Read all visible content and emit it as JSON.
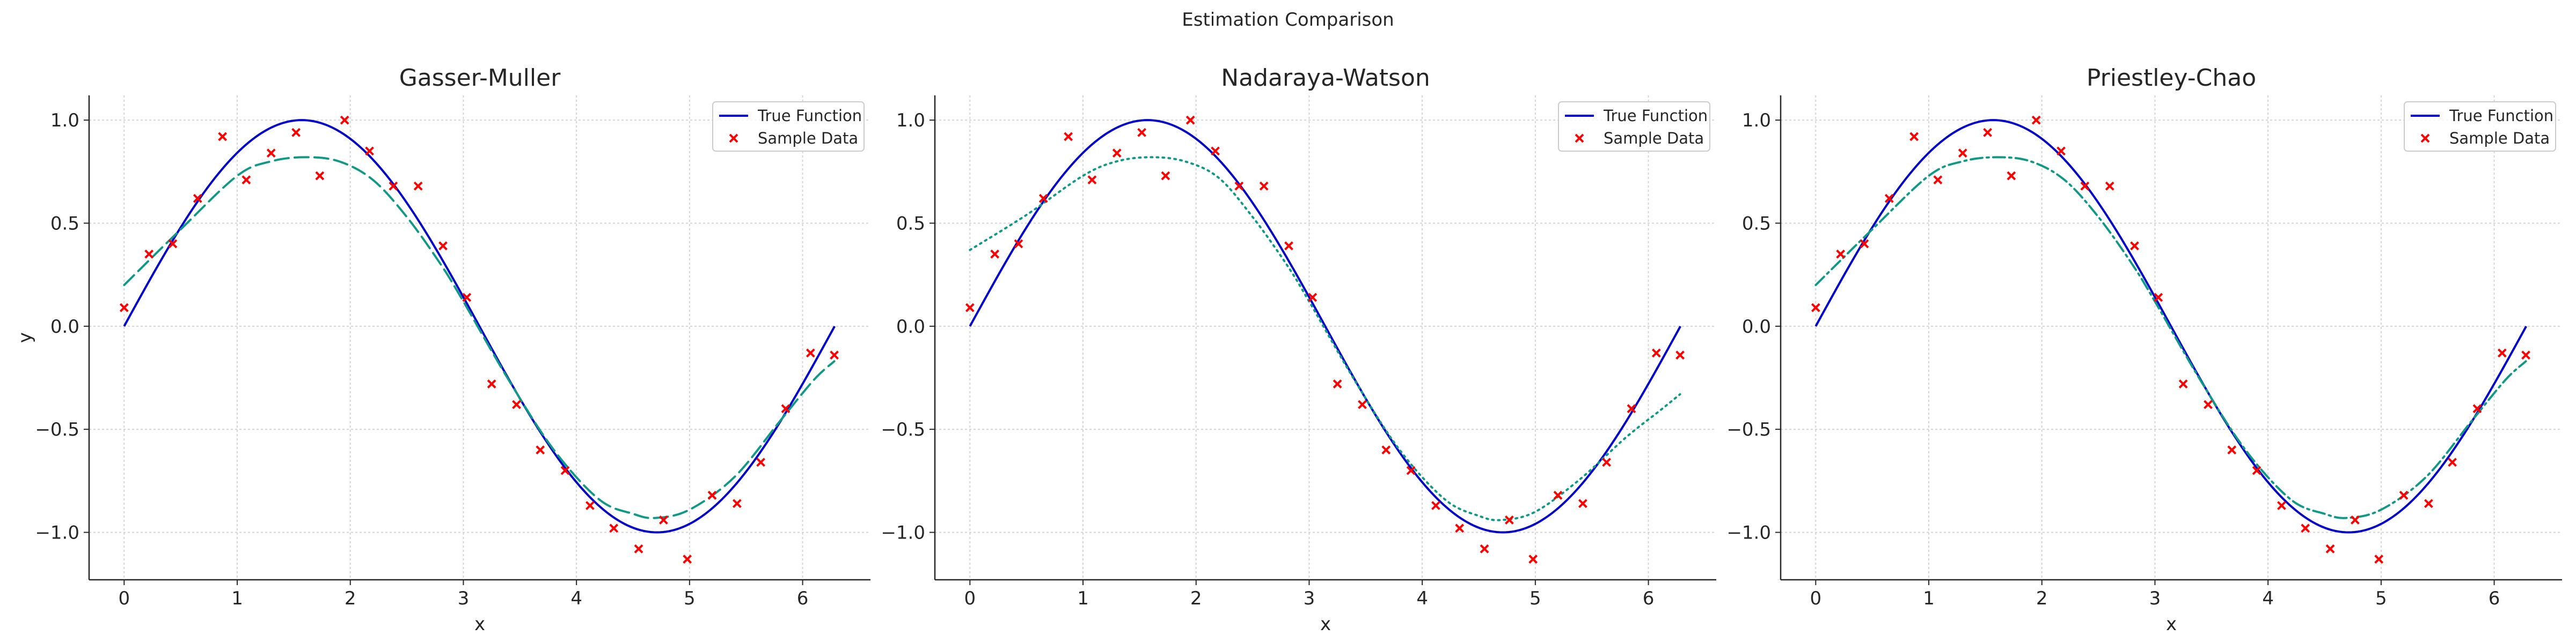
{
  "figure_title": "Estimation Comparison",
  "colors": {
    "true_function": "#0000cc",
    "estimate": "#119988",
    "sample": "#ff0000",
    "grid": "#d4d4d4",
    "axis": "#262626"
  },
  "chart_data": [
    {
      "type": "line",
      "title": "Gasser-Muller",
      "xlabel": "x",
      "ylabel": "y",
      "xlim": [
        -0.31,
        6.6
      ],
      "ylim": [
        -1.23,
        1.12
      ],
      "xticks": [
        0,
        1,
        2,
        3,
        4,
        5,
        6
      ],
      "yticks": [
        -1.0,
        -0.5,
        0.0,
        0.5,
        1.0
      ],
      "xtick_labels": [
        "0",
        "1",
        "2",
        "3",
        "4",
        "5",
        "6"
      ],
      "ytick_labels": [
        "−1.0",
        "−0.5",
        "0.0",
        "0.5",
        "1.0"
      ],
      "grid": true,
      "legend_position": "top-right",
      "legend": [
        "True Function",
        "Sample Data"
      ],
      "estimate_style": "dashed",
      "series": [
        {
          "name": "True Function",
          "function": "sin(x)",
          "x_range": [
            0,
            6.283
          ]
        },
        {
          "name": "Sample Data",
          "kind": "scatter",
          "x": [
            0.0,
            0.22,
            0.43,
            0.65,
            0.87,
            1.08,
            1.3,
            1.52,
            1.73,
            1.95,
            2.17,
            2.38,
            2.6,
            2.82,
            3.03,
            3.25,
            3.47,
            3.68,
            3.9,
            4.12,
            4.33,
            4.55,
            4.77,
            4.98,
            5.2,
            5.42,
            5.63,
            5.85,
            6.07,
            6.28
          ],
          "y": [
            0.09,
            0.35,
            0.4,
            0.62,
            0.92,
            0.71,
            0.84,
            0.94,
            0.73,
            1.0,
            0.85,
            0.68,
            0.68,
            0.39,
            0.14,
            -0.28,
            -0.38,
            -0.6,
            -0.7,
            -0.87,
            -0.98,
            -1.08,
            -0.94,
            -1.13,
            -0.82,
            -0.86,
            -0.66,
            -0.4,
            -0.13,
            -0.14
          ]
        },
        {
          "kind": "estimate",
          "x": [
            0.0,
            0.5,
            1.0,
            1.3,
            1.6,
            1.9,
            2.2,
            2.5,
            2.8,
            3.0,
            3.4,
            3.8,
            4.2,
            4.5,
            4.7,
            5.0,
            5.4,
            5.8,
            6.1,
            6.28
          ],
          "y": [
            0.2,
            0.47,
            0.73,
            0.8,
            0.82,
            0.8,
            0.71,
            0.53,
            0.3,
            0.12,
            -0.26,
            -0.6,
            -0.84,
            -0.91,
            -0.93,
            -0.89,
            -0.73,
            -0.46,
            -0.26,
            -0.17
          ]
        }
      ]
    },
    {
      "type": "line",
      "title": "Nadaraya-Watson",
      "xlabel": "x",
      "ylabel": "",
      "xlim": [
        -0.31,
        6.6
      ],
      "ylim": [
        -1.23,
        1.12
      ],
      "xticks": [
        0,
        1,
        2,
        3,
        4,
        5,
        6
      ],
      "yticks": [
        -1.0,
        -0.5,
        0.0,
        0.5,
        1.0
      ],
      "xtick_labels": [
        "0",
        "1",
        "2",
        "3",
        "4",
        "5",
        "6"
      ],
      "ytick_labels": [
        "−1.0",
        "−0.5",
        "0.0",
        "0.5",
        "1.0"
      ],
      "grid": true,
      "legend_position": "top-right",
      "legend": [
        "True Function",
        "Sample Data"
      ],
      "estimate_style": "dotted",
      "series": [
        {
          "name": "True Function",
          "function": "sin(x)",
          "x_range": [
            0,
            6.283
          ]
        },
        {
          "name": "Sample Data",
          "kind": "scatter",
          "x": [
            0.0,
            0.22,
            0.43,
            0.65,
            0.87,
            1.08,
            1.3,
            1.52,
            1.73,
            1.95,
            2.17,
            2.38,
            2.6,
            2.82,
            3.03,
            3.25,
            3.47,
            3.68,
            3.9,
            4.12,
            4.33,
            4.55,
            4.77,
            4.98,
            5.2,
            5.42,
            5.63,
            5.85,
            6.07,
            6.28
          ],
          "y": [
            0.09,
            0.35,
            0.4,
            0.62,
            0.92,
            0.71,
            0.84,
            0.94,
            0.73,
            1.0,
            0.85,
            0.68,
            0.68,
            0.39,
            0.14,
            -0.28,
            -0.38,
            -0.6,
            -0.7,
            -0.87,
            -0.98,
            -1.08,
            -0.94,
            -1.13,
            -0.82,
            -0.86,
            -0.66,
            -0.4,
            -0.13,
            -0.14
          ]
        },
        {
          "kind": "estimate",
          "x": [
            0.0,
            0.5,
            1.0,
            1.3,
            1.6,
            1.9,
            2.2,
            2.5,
            2.8,
            3.0,
            3.4,
            3.8,
            4.2,
            4.5,
            4.7,
            5.0,
            5.4,
            5.8,
            6.1,
            6.28
          ],
          "y": [
            0.37,
            0.54,
            0.73,
            0.8,
            0.82,
            0.8,
            0.72,
            0.53,
            0.3,
            0.12,
            -0.26,
            -0.6,
            -0.84,
            -0.92,
            -0.94,
            -0.9,
            -0.74,
            -0.54,
            -0.41,
            -0.33
          ]
        }
      ]
    },
    {
      "type": "line",
      "title": "Priestley-Chao",
      "xlabel": "x",
      "ylabel": "",
      "xlim": [
        -0.31,
        6.6
      ],
      "ylim": [
        -1.23,
        1.12
      ],
      "xticks": [
        0,
        1,
        2,
        3,
        4,
        5,
        6
      ],
      "yticks": [
        -1.0,
        -0.5,
        0.0,
        0.5,
        1.0
      ],
      "xtick_labels": [
        "0",
        "1",
        "2",
        "3",
        "4",
        "5",
        "6"
      ],
      "ytick_labels": [
        "−1.0",
        "−0.5",
        "0.0",
        "0.5",
        "1.0"
      ],
      "grid": true,
      "legend_position": "top-right",
      "legend": [
        "True Function",
        "Sample Data"
      ],
      "estimate_style": "dashdot",
      "series": [
        {
          "name": "True Function",
          "function": "sin(x)",
          "x_range": [
            0,
            6.283
          ]
        },
        {
          "name": "Sample Data",
          "kind": "scatter",
          "x": [
            0.0,
            0.22,
            0.43,
            0.65,
            0.87,
            1.08,
            1.3,
            1.52,
            1.73,
            1.95,
            2.17,
            2.38,
            2.6,
            2.82,
            3.03,
            3.25,
            3.47,
            3.68,
            3.9,
            4.12,
            4.33,
            4.55,
            4.77,
            4.98,
            5.2,
            5.42,
            5.63,
            5.85,
            6.07,
            6.28
          ],
          "y": [
            0.09,
            0.35,
            0.4,
            0.62,
            0.92,
            0.71,
            0.84,
            0.94,
            0.73,
            1.0,
            0.85,
            0.68,
            0.68,
            0.39,
            0.14,
            -0.28,
            -0.38,
            -0.6,
            -0.7,
            -0.87,
            -0.98,
            -1.08,
            -0.94,
            -1.13,
            -0.82,
            -0.86,
            -0.66,
            -0.4,
            -0.13,
            -0.14
          ]
        },
        {
          "kind": "estimate",
          "x": [
            0.0,
            0.5,
            1.0,
            1.3,
            1.6,
            1.9,
            2.2,
            2.5,
            2.8,
            3.0,
            3.4,
            3.8,
            4.2,
            4.5,
            4.7,
            5.0,
            5.4,
            5.8,
            6.1,
            6.28
          ],
          "y": [
            0.2,
            0.47,
            0.73,
            0.8,
            0.82,
            0.8,
            0.71,
            0.53,
            0.3,
            0.12,
            -0.26,
            -0.6,
            -0.84,
            -0.91,
            -0.93,
            -0.89,
            -0.73,
            -0.46,
            -0.26,
            -0.17
          ]
        }
      ]
    }
  ]
}
